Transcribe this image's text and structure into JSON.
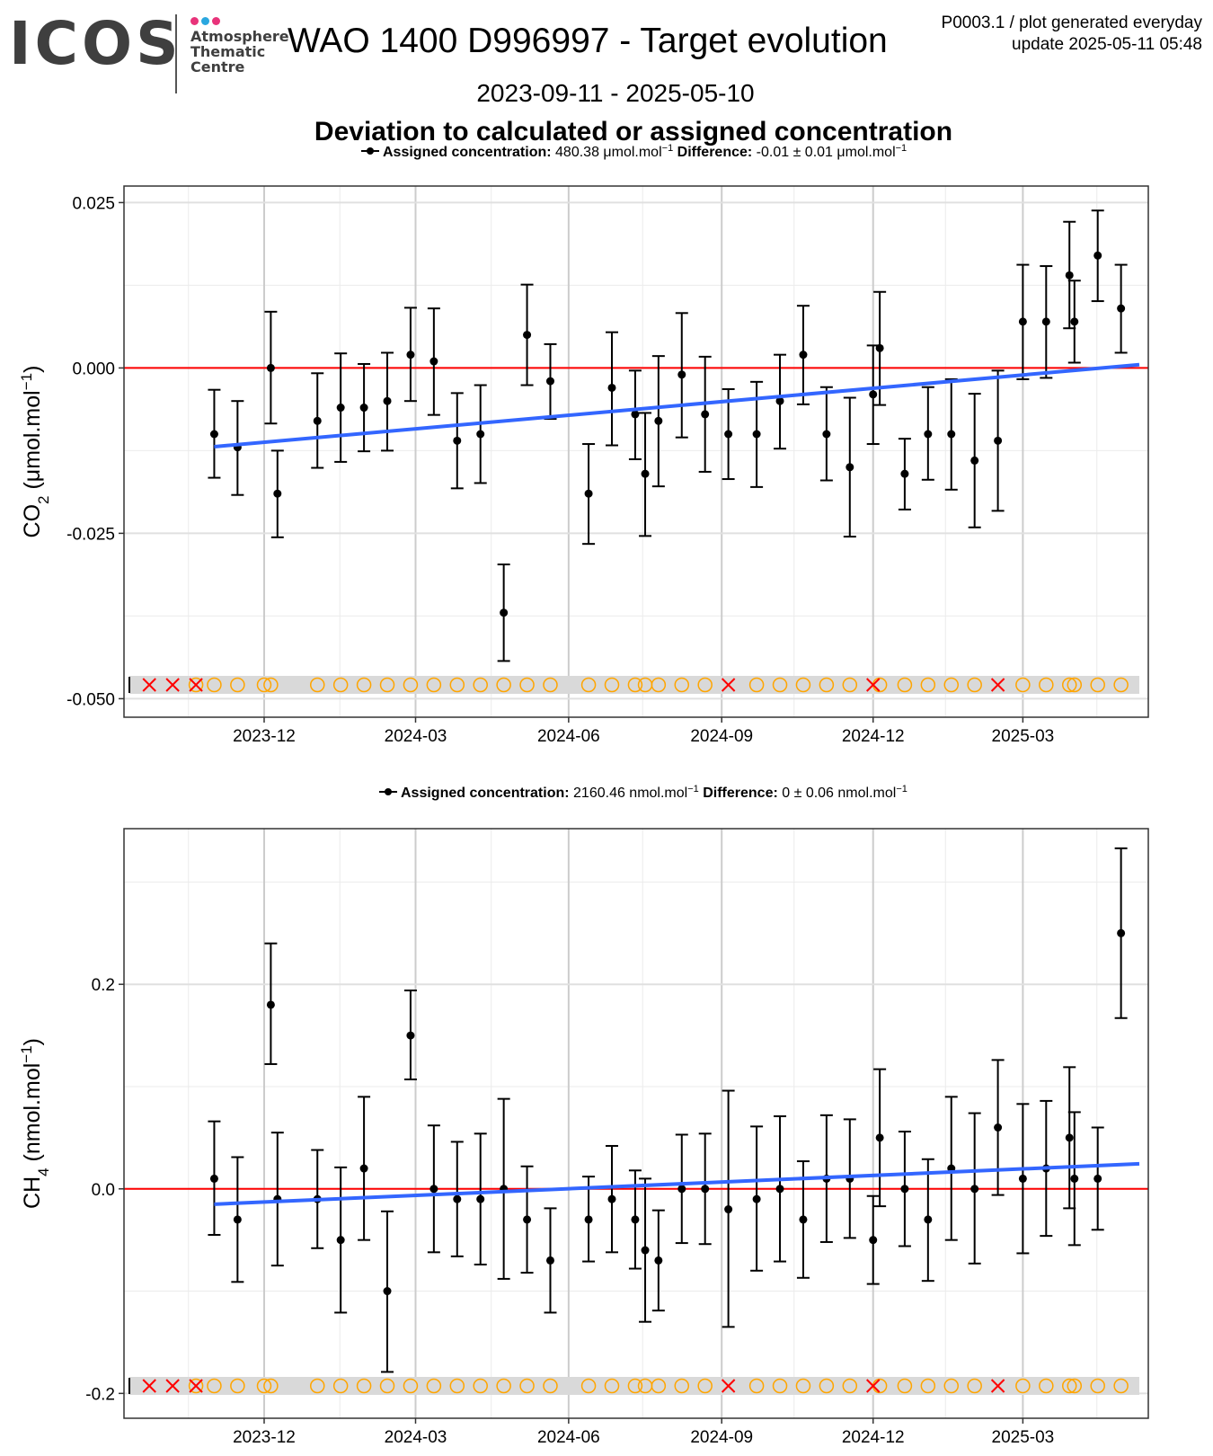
{
  "header": {
    "logo": "ICOS",
    "logo_sub": [
      "Atmosphere",
      "Thematic",
      "Centre"
    ],
    "logo_dot_colors": [
      "#e8337a",
      "#2aa7df",
      "#e8337a"
    ],
    "title": "WAO 1400 D996997 - Target evolution",
    "info_line1": "P0003.1 / plot generated everyday",
    "info_line2": "update  2025-05-11 05:48",
    "date_range": "2023-09-11 - 2025-05-10",
    "subtitle": "Deviation to calculated or assigned concentration"
  },
  "colors": {
    "trend": "#3366ff",
    "zero_line": "#ff0000",
    "points": "#000000",
    "flag_x": "#ff0000",
    "flag_circle": "#ffa500",
    "flag_band": "#d9d9d9",
    "grid": "#ebebeb"
  },
  "chart_data": [
    {
      "type": "scatter",
      "x_ticks": [
        "2023-12",
        "2024-03",
        "2024-06",
        "2024-09",
        "2024-12",
        "2025-03"
      ],
      "x_range": [
        "2023-09-11",
        "2025-05-10"
      ],
      "ylim": [
        -0.0528,
        0.0275
      ],
      "y_ticks": [
        0.025,
        0.0,
        -0.025,
        -0.05
      ],
      "y_tick_labels": [
        "0.025",
        "0.000",
        "-0.025",
        "-0.050"
      ],
      "ylabel_main": "CO",
      "ylabel_sub": "2",
      "ylabel_unit": " (μmol.mol",
      "ylabel_sup": "−1",
      "ylabel_close": ")",
      "legend": {
        "label_bold": "Assigned concentration:",
        "value": "480.38 μmol.mol",
        "sup": "−1",
        "diff_bold": "Difference:",
        "diff_value": "-0.01 ± 0.01 μmol.mol",
        "diff_sup": "−1"
      },
      "reference_line": 0.0,
      "trend": {
        "start": [
          "2023-11-01",
          -0.0119
        ],
        "end": [
          "2025-05-10",
          0.0005
        ]
      },
      "points": [
        [
          "2023-11-01",
          -0.01,
          -0.0166,
          -0.0033
        ],
        [
          "2023-11-15",
          -0.012,
          -0.0192,
          -0.005
        ],
        [
          "2023-12-05",
          0.0,
          -0.0084,
          0.0085
        ],
        [
          "2023-12-09",
          -0.019,
          -0.0256,
          -0.0125
        ],
        [
          "2024-01-02",
          -0.008,
          -0.0151,
          -0.0008
        ],
        [
          "2024-01-16",
          -0.006,
          -0.0142,
          0.0022
        ],
        [
          "2024-01-30",
          -0.006,
          -0.0126,
          0.0006
        ],
        [
          "2024-02-13",
          -0.005,
          -0.0125,
          0.0023
        ],
        [
          "2024-02-27",
          0.002,
          -0.005,
          0.0091
        ],
        [
          "2024-03-12",
          0.001,
          -0.0071,
          0.009
        ],
        [
          "2024-03-26",
          -0.011,
          -0.0182,
          -0.0038
        ],
        [
          "2024-04-09",
          -0.01,
          -0.0174,
          -0.0026
        ],
        [
          "2024-04-23",
          -0.037,
          -0.0443,
          -0.0297
        ],
        [
          "2024-05-07",
          0.005,
          -0.0026,
          0.0126
        ],
        [
          "2024-05-21",
          -0.002,
          -0.0077,
          0.0036
        ],
        [
          "2024-06-13",
          -0.019,
          -0.0266,
          -0.0115
        ],
        [
          "2024-06-27",
          -0.003,
          -0.0117,
          0.0054
        ],
        [
          "2024-07-11",
          -0.007,
          -0.0138,
          -0.0004
        ],
        [
          "2024-07-17",
          -0.016,
          -0.0254,
          -0.0068
        ],
        [
          "2024-07-25",
          -0.008,
          -0.0179,
          0.0018
        ],
        [
          "2024-08-08",
          -0.001,
          -0.0105,
          0.0083
        ],
        [
          "2024-08-22",
          -0.007,
          -0.0157,
          0.0017
        ],
        [
          "2024-09-05",
          -0.01,
          -0.0168,
          -0.0032
        ],
        [
          "2024-09-22",
          -0.01,
          -0.018,
          -0.0021
        ],
        [
          "2024-10-06",
          -0.005,
          -0.0122,
          0.002
        ],
        [
          "2024-10-20",
          0.002,
          -0.0055,
          0.0094
        ],
        [
          "2024-11-03",
          -0.01,
          -0.017,
          -0.0029
        ],
        [
          "2024-11-17",
          -0.015,
          -0.0255,
          -0.0045
        ],
        [
          "2024-12-01",
          -0.004,
          -0.0115,
          0.0034
        ],
        [
          "2024-12-05",
          0.003,
          -0.0056,
          0.0115
        ],
        [
          "2024-12-20",
          -0.016,
          -0.0214,
          -0.0107
        ],
        [
          "2025-01-03",
          -0.01,
          -0.0169,
          -0.0029
        ],
        [
          "2025-01-17",
          -0.01,
          -0.0184,
          -0.0017
        ],
        [
          "2025-01-31",
          -0.014,
          -0.0241,
          -0.0039
        ],
        [
          "2025-02-14",
          -0.011,
          -0.0216,
          -0.0004
        ],
        [
          "2025-03-01",
          0.007,
          -0.0017,
          0.0156
        ],
        [
          "2025-03-15",
          0.007,
          -0.0015,
          0.0154
        ],
        [
          "2025-03-29",
          0.014,
          0.006,
          0.0221
        ],
        [
          "2025-04-01",
          0.007,
          0.0008,
          0.0132
        ],
        [
          "2025-04-15",
          0.017,
          0.0101,
          0.0238
        ],
        [
          "2025-04-29",
          0.009,
          0.0023,
          0.0156
        ]
      ]
    },
    {
      "type": "scatter",
      "x_ticks": [
        "2023-12",
        "2024-03",
        "2024-06",
        "2024-09",
        "2024-12",
        "2025-03"
      ],
      "x_range": [
        "2023-09-11",
        "2025-05-10"
      ],
      "ylim": [
        -0.2243,
        0.3522
      ],
      "y_ticks": [
        0.2,
        0.0,
        -0.2
      ],
      "y_tick_labels": [
        "0.2",
        "0.0",
        "-0.2"
      ],
      "ylabel_main": "CH",
      "ylabel_sub": "4",
      "ylabel_unit": " (nmol.mol",
      "ylabel_sup": "−1",
      "ylabel_close": ")",
      "legend": {
        "label_bold": "Assigned concentration:",
        "value": "2160.46 nmol.mol",
        "sup": "−1",
        "diff_bold": "Difference:",
        "diff_value": "0 ± 0.06 nmol.mol",
        "diff_sup": "−1"
      },
      "reference_line": 0.0,
      "trend": {
        "start": [
          "2023-11-01",
          -0.015
        ],
        "end": [
          "2025-05-10",
          0.0245
        ]
      },
      "points": [
        [
          "2023-11-01",
          0.01,
          -0.045,
          0.066
        ],
        [
          "2023-11-15",
          -0.03,
          -0.091,
          0.031
        ],
        [
          "2023-12-05",
          0.18,
          0.122,
          0.24
        ],
        [
          "2023-12-09",
          -0.01,
          -0.075,
          0.055
        ],
        [
          "2024-01-02",
          -0.01,
          -0.058,
          0.038
        ],
        [
          "2024-01-16",
          -0.05,
          -0.121,
          0.021
        ],
        [
          "2024-01-30",
          0.02,
          -0.05,
          0.09
        ],
        [
          "2024-02-13",
          -0.1,
          -0.179,
          -0.022
        ],
        [
          "2024-02-27",
          0.15,
          0.107,
          0.194
        ],
        [
          "2024-03-12",
          0.0,
          -0.062,
          0.062
        ],
        [
          "2024-03-26",
          -0.01,
          -0.066,
          0.046
        ],
        [
          "2024-04-09",
          -0.01,
          -0.074,
          0.054
        ],
        [
          "2024-04-23",
          0.0,
          -0.088,
          0.088
        ],
        [
          "2024-05-07",
          -0.03,
          -0.082,
          0.022
        ],
        [
          "2024-05-21",
          -0.07,
          -0.121,
          -0.019
        ],
        [
          "2024-06-13",
          -0.03,
          -0.071,
          0.012
        ],
        [
          "2024-06-27",
          -0.01,
          -0.062,
          0.042
        ],
        [
          "2024-07-11",
          -0.03,
          -0.078,
          0.018
        ],
        [
          "2024-07-17",
          -0.06,
          -0.13,
          0.01
        ],
        [
          "2024-07-25",
          -0.07,
          -0.119,
          -0.021
        ],
        [
          "2024-08-08",
          0.0,
          -0.053,
          0.053
        ],
        [
          "2024-08-22",
          0.0,
          -0.054,
          0.054
        ],
        [
          "2024-09-05",
          -0.02,
          -0.135,
          0.096
        ],
        [
          "2024-09-22",
          -0.01,
          -0.08,
          0.061
        ],
        [
          "2024-10-06",
          0.0,
          -0.071,
          0.071
        ],
        [
          "2024-10-20",
          -0.03,
          -0.087,
          0.027
        ],
        [
          "2024-11-03",
          0.01,
          -0.052,
          0.072
        ],
        [
          "2024-11-17",
          0.01,
          -0.048,
          0.068
        ],
        [
          "2024-12-01",
          -0.05,
          -0.093,
          -0.007
        ],
        [
          "2024-12-05",
          0.05,
          -0.017,
          0.117
        ],
        [
          "2024-12-20",
          0.0,
          -0.056,
          0.056
        ],
        [
          "2025-01-03",
          -0.03,
          -0.09,
          0.029
        ],
        [
          "2025-01-17",
          0.02,
          -0.05,
          0.09
        ],
        [
          "2025-01-31",
          0.0,
          -0.073,
          0.074
        ],
        [
          "2025-02-14",
          0.06,
          -0.006,
          0.126
        ],
        [
          "2025-03-01",
          0.01,
          -0.063,
          0.083
        ],
        [
          "2025-03-15",
          0.02,
          -0.046,
          0.086
        ],
        [
          "2025-03-29",
          0.05,
          -0.019,
          0.119
        ],
        [
          "2025-04-01",
          0.01,
          -0.055,
          0.075
        ],
        [
          "2025-04-15",
          0.01,
          -0.04,
          0.06
        ],
        [
          "2025-04-29",
          0.25,
          0.167,
          0.333
        ]
      ]
    }
  ],
  "flag_row": {
    "black_marks": [
      "2023-09-11"
    ],
    "x_marks": [
      "2023-09-23",
      "2023-10-07",
      "2023-10-21",
      "2024-09-05",
      "2024-12-01",
      "2025-02-14"
    ],
    "circle_marks": [
      "2023-10-21",
      "2023-11-01",
      "2023-11-15",
      "2023-12-01",
      "2023-12-05",
      "2024-01-02",
      "2024-01-16",
      "2024-01-30",
      "2024-02-13",
      "2024-02-27",
      "2024-03-12",
      "2024-03-26",
      "2024-04-09",
      "2024-04-23",
      "2024-05-07",
      "2024-05-21",
      "2024-06-13",
      "2024-06-27",
      "2024-07-11",
      "2024-07-17",
      "2024-07-25",
      "2024-08-08",
      "2024-08-22",
      "2024-09-22",
      "2024-10-06",
      "2024-10-20",
      "2024-11-03",
      "2024-11-17",
      "2024-12-05",
      "2024-12-20",
      "2025-01-03",
      "2025-01-17",
      "2025-01-31",
      "2025-03-01",
      "2025-03-15",
      "2025-03-29",
      "2025-04-01",
      "2025-04-15",
      "2025-04-29"
    ]
  }
}
